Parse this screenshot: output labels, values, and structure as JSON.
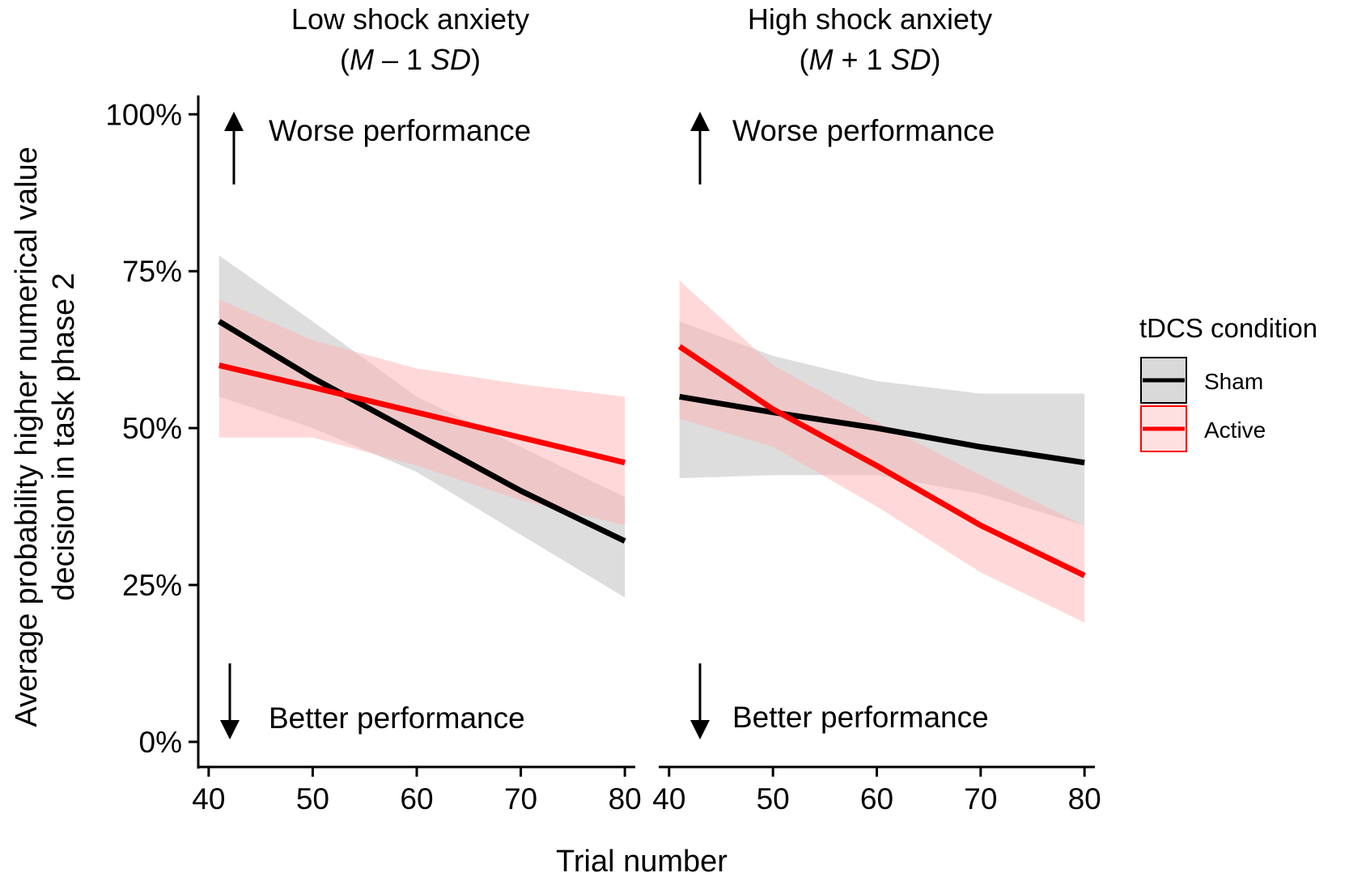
{
  "chart_data": {
    "type": "line",
    "xlabel": "Trial number",
    "ylabel": [
      "Average probability higher numerical value",
      "decision in task phase 2"
    ],
    "xlim": [
      39,
      81
    ],
    "ylim": [
      -0.04,
      1.03
    ],
    "xticks": [
      40,
      50,
      60,
      70,
      80
    ],
    "yticks": [
      0,
      0.25,
      0.5,
      0.75,
      1.0
    ],
    "ytick_labels": [
      "0%",
      "25%",
      "50%",
      "75%",
      "100%"
    ],
    "annotations": {
      "up": "Worse performance",
      "down": "Better performance"
    },
    "legend": {
      "title": "tDCS condition",
      "position": "right"
    },
    "colors": {
      "Sham": "#000000",
      "Active": "#ff0000",
      "ShamBand": "#c8c8c8",
      "ActiveBand": "#ffb3b3"
    },
    "panels": [
      {
        "title_plain": "Low shock anxiety",
        "title_open": "(",
        "title_M": "M",
        "title_op": " – 1 ",
        "title_SD": "SD",
        "title_close": ")",
        "series": [
          {
            "name": "Sham",
            "x": [
              41,
              50,
              60,
              70,
              80
            ],
            "y": [
              0.67,
              0.58,
              0.49,
              0.4,
              0.32
            ],
            "lower": [
              0.55,
              0.5,
              0.43,
              0.33,
              0.23
            ],
            "upper": [
              0.775,
              0.67,
              0.55,
              0.47,
              0.39
            ]
          },
          {
            "name": "Active",
            "x": [
              41,
              50,
              60,
              70,
              80
            ],
            "y": [
              0.6,
              0.565,
              0.525,
              0.485,
              0.445
            ],
            "lower": [
              0.485,
              0.485,
              0.44,
              0.385,
              0.345
            ],
            "upper": [
              0.705,
              0.64,
              0.595,
              0.57,
              0.55
            ]
          }
        ]
      },
      {
        "title_plain": "High shock anxiety",
        "title_open": "(",
        "title_M": "M",
        "title_op": " + 1 ",
        "title_SD": "SD",
        "title_close": ")",
        "series": [
          {
            "name": "Sham",
            "x": [
              41,
              50,
              60,
              70,
              80
            ],
            "y": [
              0.55,
              0.525,
              0.5,
              0.47,
              0.445
            ],
            "lower": [
              0.42,
              0.425,
              0.425,
              0.395,
              0.345
            ],
            "upper": [
              0.67,
              0.615,
              0.575,
              0.555,
              0.555
            ]
          },
          {
            "name": "Active",
            "x": [
              41,
              50,
              60,
              70,
              80
            ],
            "y": [
              0.63,
              0.53,
              0.44,
              0.345,
              0.265
            ],
            "lower": [
              0.515,
              0.47,
              0.375,
              0.27,
              0.19
            ],
            "upper": [
              0.735,
              0.6,
              0.51,
              0.425,
              0.345
            ]
          }
        ]
      }
    ]
  }
}
